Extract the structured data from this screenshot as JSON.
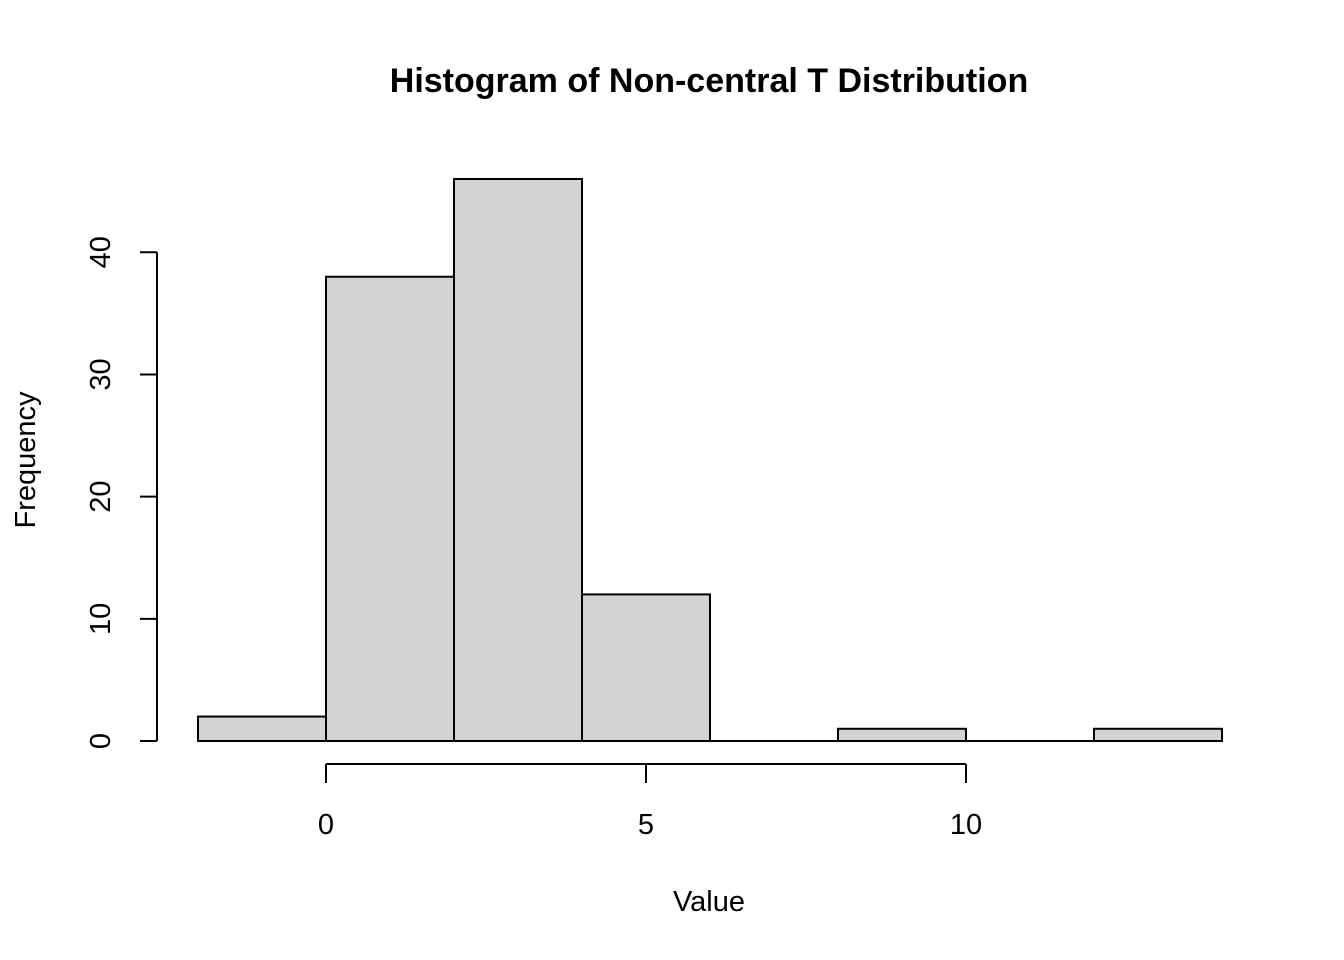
{
  "chart_data": {
    "type": "bar",
    "subtype": "histogram",
    "title": "Histogram of Non-central T Distribution",
    "xlabel": "Value",
    "ylabel": "Frequency",
    "bins": [
      {
        "start": -2,
        "end": 0,
        "count": 2
      },
      {
        "start": 0,
        "end": 2,
        "count": 38
      },
      {
        "start": 2,
        "end": 4,
        "count": 46
      },
      {
        "start": 4,
        "end": 6,
        "count": 12
      },
      {
        "start": 6,
        "end": 8,
        "count": 0
      },
      {
        "start": 8,
        "end": 10,
        "count": 1
      },
      {
        "start": 10,
        "end": 12,
        "count": 0
      },
      {
        "start": 12,
        "end": 14,
        "count": 1
      }
    ],
    "xlim": [
      -2,
      14
    ],
    "ylim": [
      0,
      46
    ],
    "x_ticks": [
      0,
      5,
      10
    ],
    "y_ticks": [
      0,
      10,
      20,
      30,
      40
    ],
    "bar_color": "#d3d3d3",
    "border_color": "#000000",
    "grid": false,
    "legend": "none"
  }
}
